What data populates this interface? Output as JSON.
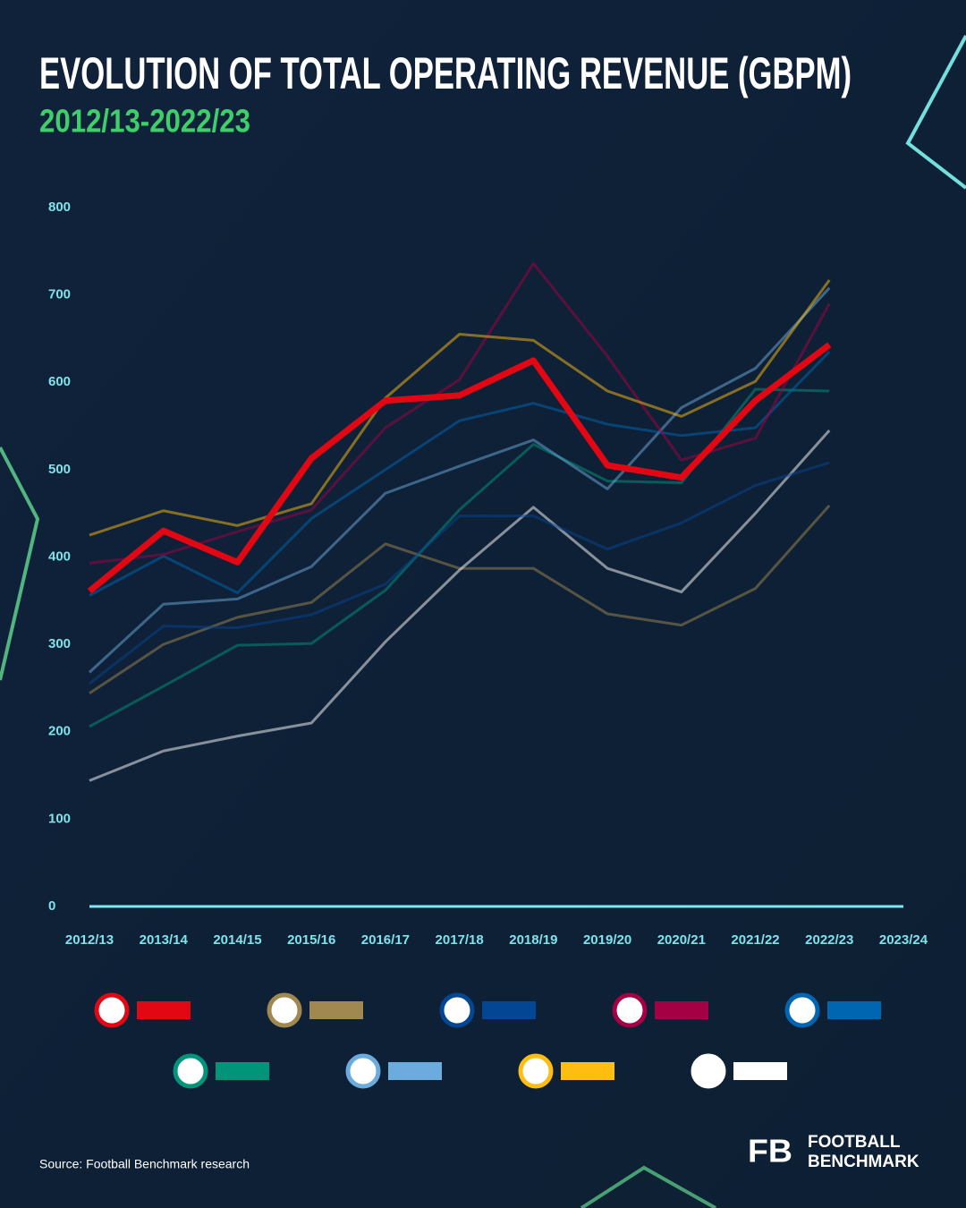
{
  "chart_data": {
    "type": "line",
    "title": "EVOLUTION OF TOTAL OPERATING REVENUE (GBPM)",
    "subtitle": "2012/13-2022/23",
    "categories": [
      "2012/13",
      "2013/14",
      "2014/15",
      "2015/16",
      "2016/17",
      "2017/18",
      "2018/19",
      "2019/20",
      "2020/21",
      "2021/22",
      "2022/23",
      "2023/24"
    ],
    "ylim": [
      0,
      800
    ],
    "yticks": [
      0,
      100,
      200,
      300,
      400,
      500,
      600,
      700,
      800
    ],
    "series": [
      {
        "color": "#a08850",
        "line_width": 3,
        "values": [
          244,
          300,
          331,
          348,
          415,
          387,
          387,
          335,
          322,
          364,
          459,
          null
        ]
      },
      {
        "color": "#ffffff",
        "line_width": 3,
        "values": [
          144,
          178,
          195,
          210,
          303,
          385,
          457,
          387,
          360,
          450,
          545,
          null
        ]
      },
      {
        "color": "#00957a",
        "line_width": 3,
        "values": [
          206,
          252,
          299,
          301,
          362,
          454,
          529,
          487,
          485,
          592,
          590,
          null
        ]
      },
      {
        "color": "#034694",
        "line_width": 3,
        "values": [
          255,
          321,
          319,
          334,
          369,
          447,
          447,
          409,
          439,
          482,
          508,
          null
        ]
      },
      {
        "color": "#6cabdd",
        "line_width": 3,
        "values": [
          268,
          346,
          352,
          389,
          473,
          504,
          534,
          478,
          571,
          616,
          708,
          null
        ]
      },
      {
        "color": "#0066b2",
        "line_width": 3,
        "values": [
          356,
          401,
          359,
          444,
          500,
          556,
          576,
          552,
          539,
          548,
          635,
          null
        ]
      },
      {
        "color": "#a50044",
        "line_width": 3,
        "values": [
          393,
          403,
          429,
          454,
          548,
          603,
          736,
          630,
          511,
          536,
          690,
          null
        ]
      },
      {
        "color": "#fdbe11",
        "line_width": 3,
        "values": [
          425,
          453,
          436,
          461,
          582,
          655,
          648,
          590,
          561,
          601,
          717,
          null
        ]
      },
      {
        "color": "#e30613",
        "line_width": 7,
        "values": [
          361,
          430,
          394,
          513,
          579,
          585,
          625,
          505,
          491,
          579,
          643,
          null
        ]
      }
    ],
    "source": "Source: Football Benchmark research",
    "brand": [
      "FOOTBALL",
      "BENCHMARK"
    ],
    "brand_mark": "FB"
  }
}
